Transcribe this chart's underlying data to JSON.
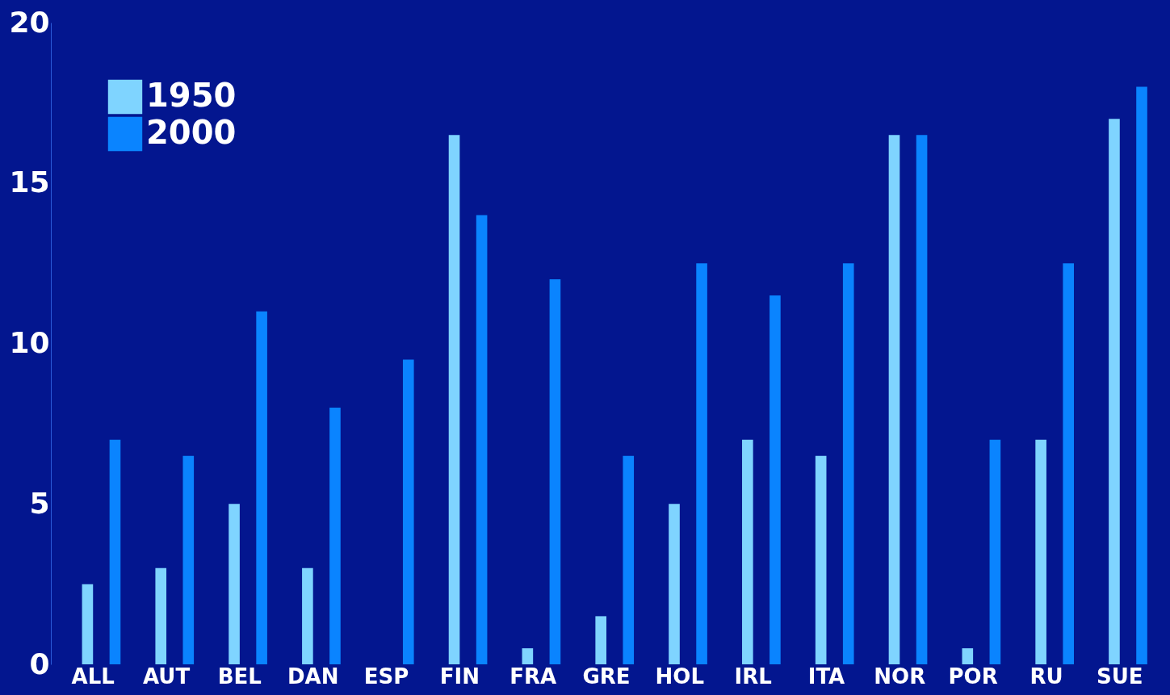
{
  "chart_data": {
    "type": "bar",
    "categories": [
      "ALL",
      "AUT",
      "BEL",
      "DAN",
      "ESP",
      "FIN",
      "FRA",
      "GRE",
      "HOL",
      "IRL",
      "ITA",
      "NOR",
      "POR",
      "RU",
      "SUE"
    ],
    "series": [
      {
        "name": "1950",
        "color": "#7fd4ff",
        "values": [
          2.5,
          3,
          5,
          3,
          0,
          16.5,
          0.5,
          1.5,
          5,
          7,
          6.5,
          16.5,
          0.5,
          7,
          17
        ]
      },
      {
        "name": "2000",
        "color": "#0a84ff",
        "values": [
          7,
          6.5,
          11,
          8,
          9.5,
          14,
          12,
          6.5,
          12.5,
          11.5,
          12.5,
          16.5,
          7,
          12.5,
          18
        ]
      }
    ],
    "ylim": [
      0,
      20
    ],
    "yticks": [
      0,
      5,
      10,
      15,
      20
    ],
    "grid": false,
    "legend": "top left"
  }
}
